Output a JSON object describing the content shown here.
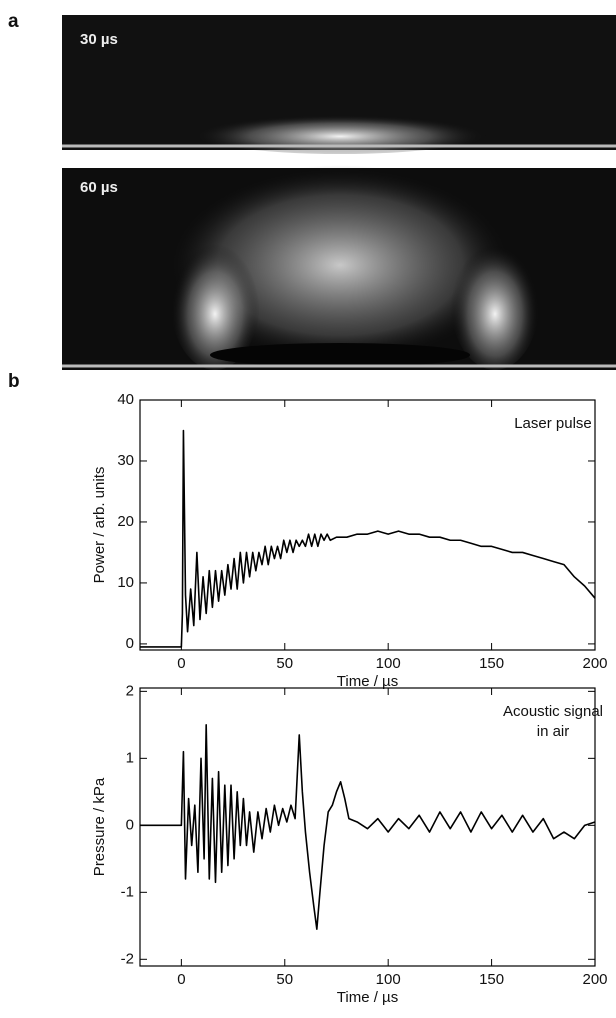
{
  "panels": {
    "a": {
      "label": "a",
      "images": [
        {
          "label": "30 µs"
        },
        {
          "label": "60 µs"
        }
      ]
    },
    "b": {
      "label": "b"
    }
  },
  "chart_data": [
    {
      "type": "line",
      "annotation": [
        "Laser pulse"
      ],
      "xlabel": "Time / µs",
      "ylabel": "Power / arb. units",
      "color": "#000000",
      "xlim": [
        -20,
        200
      ],
      "xticks": [
        0,
        50,
        100,
        150,
        200
      ],
      "ylim": [
        -1,
        40
      ],
      "yticks": [
        0,
        10,
        20,
        30,
        40
      ],
      "x": [
        -20,
        -10,
        0,
        0.5,
        1,
        2,
        3,
        4.5,
        6,
        7.5,
        9,
        10.5,
        12,
        13.5,
        15,
        16.5,
        18,
        19.5,
        21,
        22.5,
        24,
        25.5,
        27,
        28.5,
        30,
        31.5,
        33,
        34.5,
        36,
        37.5,
        39,
        40.5,
        42,
        43.5,
        45,
        46.5,
        48,
        49.5,
        51,
        52.5,
        54,
        55.5,
        57,
        58.5,
        60,
        61.5,
        63,
        64.5,
        66,
        67.5,
        69,
        70.5,
        72,
        75,
        80,
        85,
        90,
        95,
        100,
        105,
        110,
        115,
        120,
        125,
        130,
        135,
        140,
        145,
        150,
        155,
        160,
        165,
        170,
        175,
        180,
        185,
        190,
        195,
        200
      ],
      "values": [
        -0.5,
        -0.5,
        -0.5,
        5,
        35,
        8,
        2,
        9,
        3,
        15,
        4,
        11,
        5,
        12,
        6,
        12,
        7,
        12,
        8,
        13,
        9,
        14,
        9,
        15,
        10,
        15,
        11,
        15,
        12,
        15,
        13,
        16,
        13,
        16,
        14,
        16,
        14,
        17,
        15,
        17,
        15,
        17,
        16,
        17,
        16,
        18,
        16,
        18,
        16,
        18,
        17,
        18,
        17,
        17.5,
        17.5,
        18,
        18,
        18.5,
        18,
        18.5,
        18,
        18,
        17.5,
        17.5,
        17,
        17,
        16.5,
        16,
        16,
        15.5,
        15,
        15,
        14.5,
        14,
        13.5,
        13,
        11,
        9.5,
        7.5
      ]
    },
    {
      "type": "line",
      "annotation": [
        "Acoustic signal",
        "in air"
      ],
      "xlabel": "Time / µs",
      "ylabel": "Pressure / kPa",
      "color": "#000000",
      "xlim": [
        -20,
        200
      ],
      "xticks": [
        0,
        50,
        100,
        150,
        200
      ],
      "ylim": [
        -2.1,
        2.05
      ],
      "yticks": [
        -2,
        -1,
        0,
        1,
        2
      ],
      "x": [
        -20,
        -10,
        0,
        1,
        2,
        3.5,
        5,
        6.5,
        8,
        9.5,
        11,
        12,
        13.5,
        15,
        16.5,
        18,
        19.5,
        21,
        22.5,
        24,
        25.5,
        27,
        28.5,
        30,
        31.5,
        33,
        35,
        37,
        39,
        41,
        43,
        45,
        47,
        49,
        51,
        53,
        55,
        57,
        58.5,
        60,
        62,
        64,
        65.5,
        67,
        69,
        71,
        73,
        75,
        77,
        79,
        81,
        85,
        90,
        95,
        100,
        105,
        110,
        115,
        120,
        125,
        130,
        135,
        140,
        145,
        150,
        155,
        160,
        165,
        170,
        175,
        180,
        185,
        190,
        195,
        200
      ],
      "values": [
        0,
        0,
        0,
        1.1,
        -0.8,
        0.4,
        -0.3,
        0.3,
        -0.7,
        1.0,
        -0.5,
        1.5,
        -0.8,
        0.7,
        -0.85,
        0.8,
        -0.7,
        0.6,
        -0.6,
        0.6,
        -0.5,
        0.5,
        -0.3,
        0.4,
        -0.3,
        0.2,
        -0.4,
        0.2,
        -0.2,
        0.25,
        -0.1,
        0.3,
        0,
        0.25,
        0.05,
        0.3,
        0.1,
        1.35,
        0.5,
        -0.1,
        -0.7,
        -1.2,
        -1.55,
        -1.0,
        -0.3,
        0.2,
        0.3,
        0.5,
        0.65,
        0.4,
        0.1,
        0.05,
        -0.05,
        0.1,
        -0.1,
        0.1,
        -0.05,
        0.15,
        -0.1,
        0.2,
        -0.05,
        0.2,
        -0.1,
        0.2,
        -0.05,
        0.15,
        -0.1,
        0.15,
        -0.1,
        0.1,
        -0.2,
        -0.1,
        -0.2,
        0,
        0.05
      ]
    }
  ]
}
